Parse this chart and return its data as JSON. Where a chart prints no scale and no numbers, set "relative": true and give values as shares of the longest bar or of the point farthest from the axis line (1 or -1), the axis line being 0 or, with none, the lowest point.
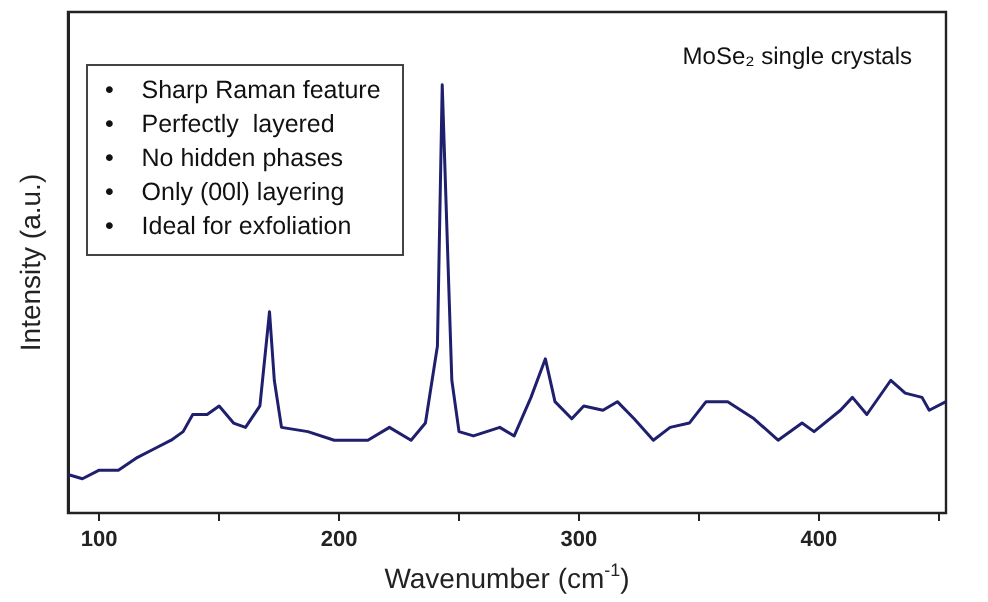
{
  "chart_data": {
    "type": "line",
    "relative": true,
    "xlabel": "Wavenumber (cm$^{-1}$)",
    "ylabel": "Intensity (a.u.)",
    "color": "#1f1f6e",
    "marker": "none",
    "xlim": [
      87,
      453
    ],
    "xticks": [
      100,
      {
        "value": 150,
        "label": null
      },
      200,
      {
        "value": 250,
        "label": null
      },
      300,
      {
        "value": 350,
        "label": null
      },
      400,
      {
        "value": 450,
        "label": null
      }
    ],
    "x": [
      87,
      93,
      100,
      108,
      116,
      123,
      130,
      135,
      139,
      145,
      150,
      156,
      161,
      167,
      171,
      173,
      176,
      187,
      198,
      212,
      221,
      230,
      236,
      241,
      243,
      247,
      250,
      256,
      267,
      273,
      280,
      286,
      290,
      297,
      302,
      310,
      316,
      323,
      331,
      338,
      346,
      353,
      362,
      373,
      383,
      393,
      398,
      409,
      414,
      420,
      430,
      436,
      443,
      446,
      453
    ],
    "values": [
      0.09,
      0.08,
      0.1,
      0.1,
      0.13,
      0.15,
      0.17,
      0.19,
      0.23,
      0.23,
      0.25,
      0.21,
      0.2,
      0.25,
      0.47,
      0.31,
      0.2,
      0.19,
      0.17,
      0.17,
      0.2,
      0.17,
      0.21,
      0.39,
      1,
      0.31,
      0.19,
      0.18,
      0.2,
      0.18,
      0.27,
      0.36,
      0.26,
      0.22,
      0.25,
      0.24,
      0.26,
      0.22,
      0.17,
      0.2,
      0.21,
      0.26,
      0.26,
      0.22,
      0.17,
      0.21,
      0.19,
      0.24,
      0.27,
      0.23,
      0.31,
      0.28,
      0.27,
      0.24,
      0.26
    ],
    "annotations": [
      "MoSe₂ single crystals",
      "•    Sharp Raman feature",
      "•    Perfectly  layered",
      "•    No hidden phases",
      "•    Only (00l) layering",
      "•    Ideal for exfoliation"
    ]
  }
}
